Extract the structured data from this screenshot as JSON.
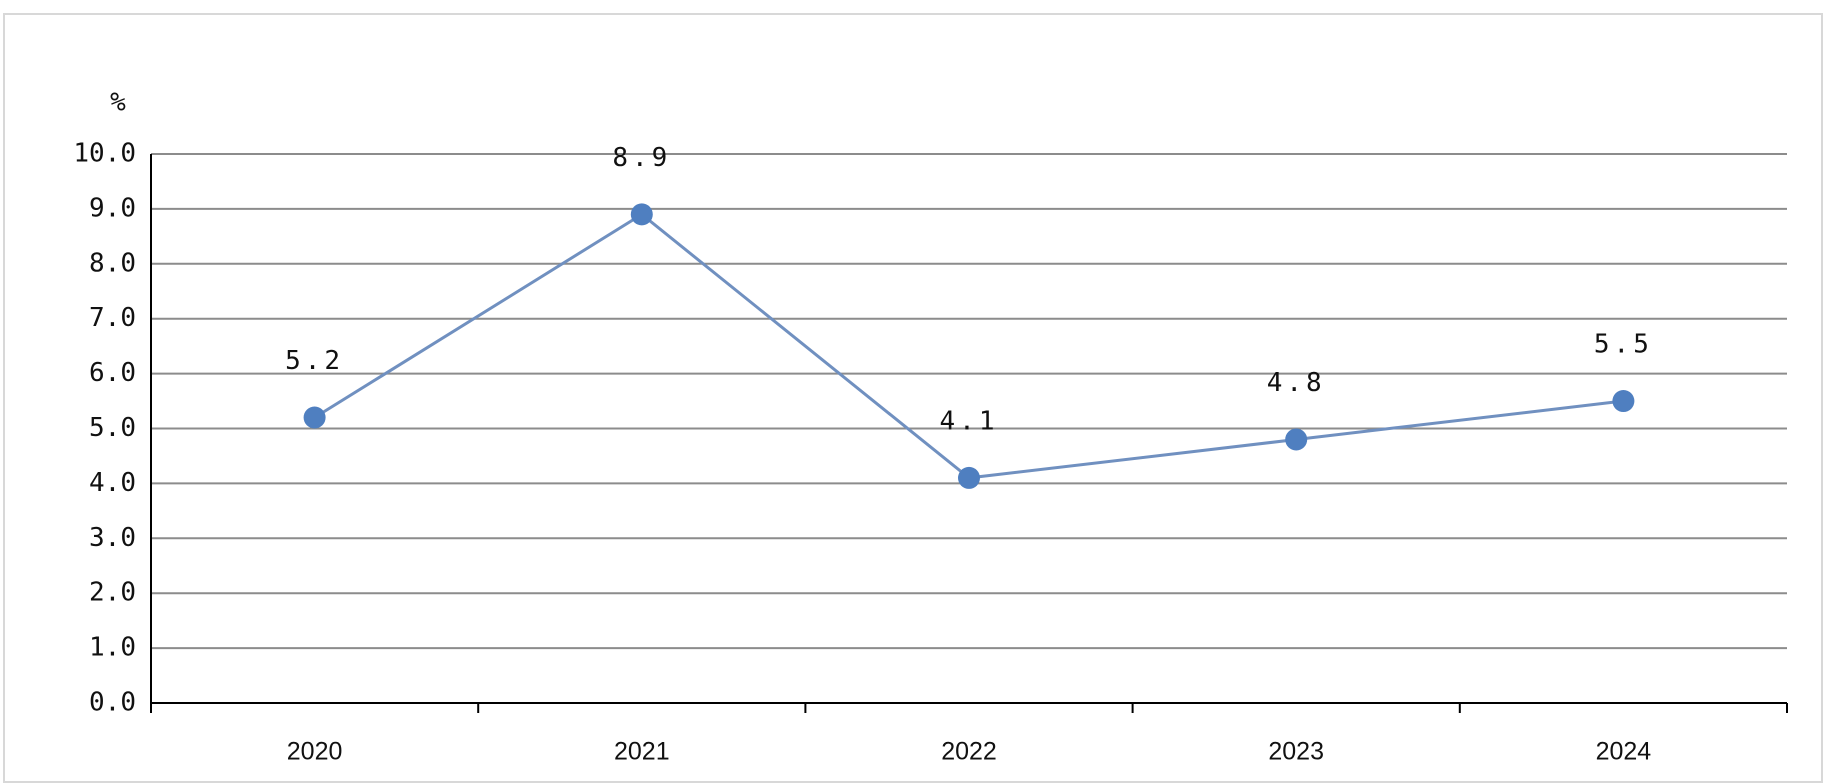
{
  "chart_data": {
    "type": "line",
    "y_label": "%",
    "categories": [
      "2020",
      "2021",
      "2022",
      "2023",
      "2024"
    ],
    "values": [
      5.2,
      8.9,
      4.1,
      4.8,
      5.5
    ],
    "color": "#4f7fc0",
    "line_color": "#7090c0",
    "ylim": [
      0,
      10
    ],
    "yticks": [
      {
        "value": 0,
        "label": "0.0"
      },
      {
        "value": 1,
        "label": "1.0"
      },
      {
        "value": 2,
        "label": "2.0"
      },
      {
        "value": 3,
        "label": "3.0"
      },
      {
        "value": 4,
        "label": "4.0"
      },
      {
        "value": 5,
        "label": "5.0"
      },
      {
        "value": 6,
        "label": "6.0"
      },
      {
        "value": 7,
        "label": "7.0"
      },
      {
        "value": 8,
        "label": "8.0"
      },
      {
        "value": 9,
        "label": "9.0"
      },
      {
        "value": 10,
        "label": "10.0"
      }
    ],
    "grid": true
  }
}
